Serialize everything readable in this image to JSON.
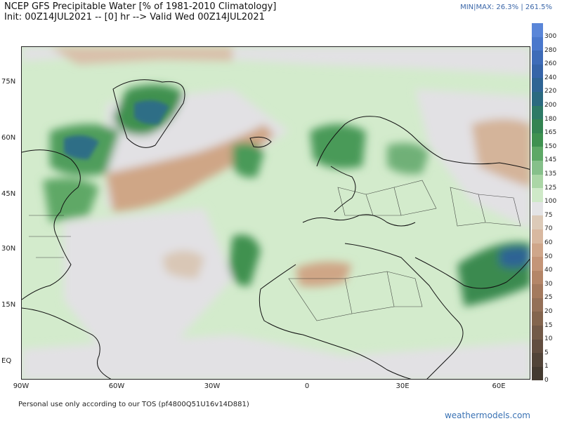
{
  "header": {
    "title": "NCEP GFS Precipitable Water [% of 1981-2010 Climatology]",
    "subtitle": "Init: 00Z14JUL2021 -- [0] hr --> Valid Wed 00Z14JUL2021",
    "minmax": "MIN|MAX: 26.3% | 261.5%"
  },
  "map": {
    "lat_labels": [
      "75N",
      "60N",
      "45N",
      "30N",
      "15N",
      "EQ"
    ],
    "lon_labels": [
      "90W",
      "60W",
      "30W",
      "0",
      "30E",
      "60E"
    ]
  },
  "colorbar": {
    "levels": [
      "300",
      "280",
      "260",
      "240",
      "220",
      "200",
      "180",
      "165",
      "150",
      "145",
      "135",
      "125",
      "100",
      "75",
      "70",
      "60",
      "50",
      "40",
      "30",
      "25",
      "20",
      "15",
      "10",
      "5",
      "1",
      "0"
    ],
    "colors": [
      "#5a86d8",
      "#4a78cc",
      "#3e6cb8",
      "#3664a8",
      "#2f6494",
      "#2b6a80",
      "#2e7a66",
      "#348452",
      "#3f9150",
      "#5ea866",
      "#86c08a",
      "#abd6a6",
      "#cfe9c8",
      "#e4e4e6",
      "#dccab8",
      "#d8b8a0",
      "#cfa68a",
      "#c49578",
      "#b48668",
      "#a47a5e",
      "#947058",
      "#84654e",
      "#735a48",
      "#624e40",
      "#524438",
      "#443a30"
    ]
  },
  "footer": {
    "tos": "Personal use only according to our TOS (pf4800Q51U16v14D881)",
    "brand": "weathermodels.com"
  }
}
